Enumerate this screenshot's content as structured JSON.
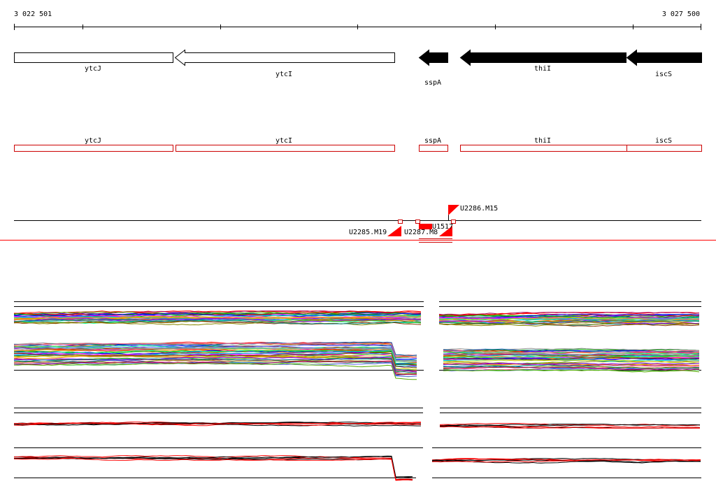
{
  "coordinates": {
    "start": "3 022 501",
    "end": "3 027 500"
  },
  "genes": [
    {
      "name": "ytcJ",
      "strand": "+",
      "fill": "white"
    },
    {
      "name": "ytcI",
      "strand": "-",
      "fill": "white"
    },
    {
      "name": "sspA",
      "strand": "-",
      "fill": "black"
    },
    {
      "name": "thiI",
      "strand": "-",
      "fill": "black"
    },
    {
      "name": "iscS",
      "strand": "-",
      "fill": "black"
    }
  ],
  "cds_labels": [
    "ytcJ",
    "ytcI",
    "sspA",
    "thiI",
    "iscS"
  ],
  "features": [
    {
      "name": "U2286.M15"
    },
    {
      "name": "U2285.M19"
    },
    {
      "name": "U2287.M8"
    },
    {
      "name": "U1517"
    }
  ],
  "colors": {
    "gene_outline": "#000000",
    "cds_box": "#cc0000",
    "marker": "#ff0000",
    "divider": "#ff0000"
  },
  "expression_palette": [
    "#ff0000",
    "#00aa00",
    "#0000ff",
    "#ff00ff",
    "#00cccc",
    "#cccc00",
    "#ff8800",
    "#8800ff",
    "#008888",
    "#888800",
    "#aa0055",
    "#55aa00",
    "#0055aa",
    "#ff6699",
    "#66cc66",
    "#6666ff",
    "#999999",
    "#cc6600",
    "#00ff88",
    "#883300"
  ],
  "summary_colors": [
    "#000000",
    "#ff0000"
  ]
}
